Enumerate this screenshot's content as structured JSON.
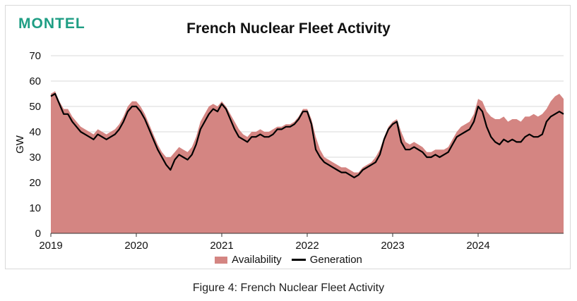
{
  "brand": {
    "logo_text": "MONTEL"
  },
  "caption": "Figure 4: French Nuclear Fleet Activity",
  "colors": {
    "availability": "#d48582",
    "generation": "#000000",
    "brand": "#1f9e84"
  },
  "chart_data": {
    "type": "area",
    "title": "French Nuclear Fleet Activity",
    "xlabel": "",
    "ylabel": "GW",
    "ylim": [
      0,
      70
    ],
    "yticks": [
      0,
      10,
      20,
      30,
      40,
      50,
      60,
      70
    ],
    "xlim": [
      2019,
      2025
    ],
    "xticks": [
      "2019",
      "2020",
      "2021",
      "2022",
      "2023",
      "2024"
    ],
    "grid": true,
    "legend_position": "bottom",
    "x": [
      2019.0,
      2019.05,
      2019.1,
      2019.15,
      2019.2,
      2019.25,
      2019.3,
      2019.35,
      2019.4,
      2019.45,
      2019.5,
      2019.55,
      2019.6,
      2019.65,
      2019.7,
      2019.75,
      2019.8,
      2019.85,
      2019.9,
      2019.95,
      2020.0,
      2020.05,
      2020.1,
      2020.15,
      2020.2,
      2020.25,
      2020.3,
      2020.35,
      2020.4,
      2020.45,
      2020.5,
      2020.55,
      2020.6,
      2020.65,
      2020.7,
      2020.75,
      2020.8,
      2020.85,
      2020.9,
      2020.95,
      2021.0,
      2021.05,
      2021.1,
      2021.15,
      2021.2,
      2021.25,
      2021.3,
      2021.35,
      2021.4,
      2021.45,
      2021.5,
      2021.55,
      2021.6,
      2021.65,
      2021.7,
      2021.75,
      2021.8,
      2021.85,
      2021.9,
      2021.95,
      2022.0,
      2022.05,
      2022.1,
      2022.15,
      2022.2,
      2022.25,
      2022.3,
      2022.35,
      2022.4,
      2022.45,
      2022.5,
      2022.55,
      2022.6,
      2022.65,
      2022.7,
      2022.75,
      2022.8,
      2022.85,
      2022.9,
      2022.95,
      2023.0,
      2023.05,
      2023.1,
      2023.15,
      2023.2,
      2023.25,
      2023.3,
      2023.35,
      2023.4,
      2023.45,
      2023.5,
      2023.55,
      2023.6,
      2023.65,
      2023.7,
      2023.75,
      2023.8,
      2023.85,
      2023.9,
      2023.95,
      2024.0,
      2024.05,
      2024.1,
      2024.15,
      2024.2,
      2024.25,
      2024.3,
      2024.35,
      2024.4,
      2024.45,
      2024.5,
      2024.55,
      2024.6,
      2024.65,
      2024.7,
      2024.75,
      2024.8,
      2024.85,
      2024.9,
      2024.95,
      2025.0
    ],
    "series": [
      {
        "name": "Availability",
        "values": [
          55,
          56,
          52,
          49,
          49,
          46,
          44,
          42,
          41,
          40,
          39,
          41,
          40,
          39,
          40,
          41,
          43,
          46,
          50,
          52,
          52,
          50,
          47,
          43,
          39,
          35,
          32,
          30,
          30,
          32,
          34,
          33,
          32,
          34,
          38,
          44,
          47,
          50,
          51,
          50,
          52,
          50,
          47,
          44,
          41,
          39,
          38,
          40,
          40,
          41,
          40,
          40,
          41,
          42,
          42,
          43,
          43,
          44,
          46,
          49,
          49,
          45,
          38,
          33,
          30,
          29,
          28,
          27,
          26,
          26,
          25,
          24,
          24,
          26,
          27,
          28,
          30,
          33,
          38,
          42,
          44,
          45,
          40,
          36,
          35,
          36,
          35,
          34,
          32,
          32,
          33,
          33,
          33,
          34,
          37,
          40,
          42,
          43,
          44,
          47,
          53,
          52,
          48,
          46,
          45,
          45,
          46,
          44,
          45,
          45,
          44,
          46,
          46,
          47,
          46,
          47,
          49,
          52,
          54,
          55,
          53
        ]
      },
      {
        "name": "Generation",
        "values": [
          54,
          55,
          51,
          47,
          47,
          44,
          42,
          40,
          39,
          38,
          37,
          39,
          38,
          37,
          38,
          39,
          41,
          44,
          48,
          50,
          50,
          48,
          45,
          41,
          37,
          33,
          30,
          27,
          25,
          29,
          31,
          30,
          29,
          31,
          35,
          41,
          44,
          47,
          49,
          48,
          51,
          49,
          45,
          41,
          38,
          37,
          36,
          38,
          38,
          39,
          38,
          38,
          39,
          41,
          41,
          42,
          42,
          43,
          45,
          48,
          48,
          43,
          33,
          30,
          28,
          27,
          26,
          25,
          24,
          24,
          23,
          22,
          23,
          25,
          26,
          27,
          28,
          31,
          37,
          41,
          43,
          44,
          36,
          33,
          33,
          34,
          33,
          32,
          30,
          30,
          31,
          30,
          31,
          32,
          35,
          38,
          39,
          40,
          41,
          44,
          50,
          48,
          42,
          38,
          36,
          35,
          37,
          36,
          37,
          36,
          36,
          38,
          39,
          38,
          38,
          39,
          44,
          46,
          47,
          48,
          47
        ]
      }
    ]
  }
}
